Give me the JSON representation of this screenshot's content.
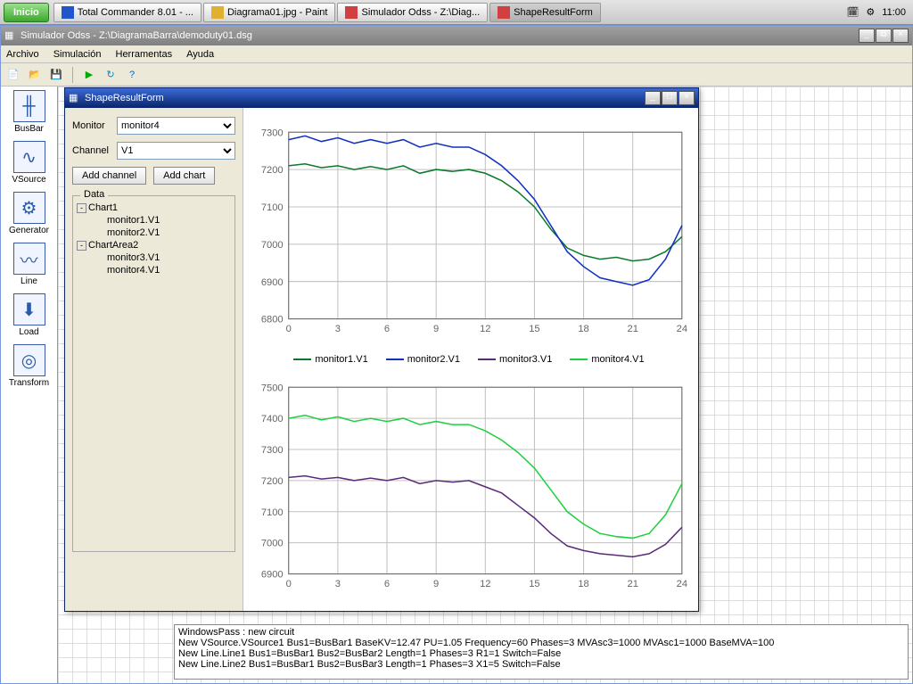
{
  "taskbar": {
    "start": "Inicio",
    "items": [
      {
        "label": "Total Commander 8.01 - ...",
        "icon_color": "#2255cc"
      },
      {
        "label": "Diagrama01.jpg - Paint",
        "icon_color": "#e0b030"
      },
      {
        "label": "Simulador Odss - Z:\\Diag...",
        "icon_color": "#d04040"
      },
      {
        "label": "ShapeResultForm",
        "icon_color": "#d04040",
        "active": true
      }
    ],
    "clock": "11:00"
  },
  "main_window": {
    "title": "Simulador Odss - Z:\\DiagramaBarra\\demoduty01.dsg",
    "menu": [
      "Archivo",
      "Simulación",
      "Herramentas",
      "Ayuda"
    ],
    "palette": [
      {
        "label": "BusBar"
      },
      {
        "label": "VSource"
      },
      {
        "label": "Generator"
      },
      {
        "label": "Line"
      },
      {
        "label": "Load"
      },
      {
        "label": "Transform"
      }
    ],
    "log": [
      "WindowsPass : new circuit",
      "New VSource.VSource1 Bus1=BusBar1 BaseKV=12.47 PU=1.05 Frequency=60 Phases=3 MVAsc3=1000 MVAsc1=1000 BaseMVA=100",
      "New Line.Line1 Bus1=BusBar1 Bus2=BusBar2 Length=1 Phases=3 R1=1 Switch=False",
      "New Line.Line2 Bus1=BusBar1 Bus2=BusBar3 Length=1 Phases=3 X1=5 Switch=False"
    ]
  },
  "dialog": {
    "title": "ShapeResultForm",
    "monitor_label": "Monitor",
    "monitor_value": "monitor4",
    "channel_label": "Channel",
    "channel_value": "V1",
    "add_channel": "Add channel",
    "add_chart": "Add chart",
    "data_group": "Data",
    "tree": [
      {
        "label": "Chart1",
        "children": [
          "monitor1.V1",
          "monitor2.V1"
        ]
      },
      {
        "label": "ChartArea2",
        "children": [
          "monitor3.V1",
          "monitor4.V1"
        ]
      }
    ]
  },
  "legend": [
    {
      "label": "monitor1.V1",
      "color": "#0a7a2a"
    },
    {
      "label": "monitor2.V1",
      "color": "#1030c0"
    },
    {
      "label": "monitor3.V1",
      "color": "#5a2a7a"
    },
    {
      "label": "monitor4.V1",
      "color": "#20d040"
    }
  ],
  "chart1": {
    "type": "line",
    "xlim": [
      0,
      24
    ],
    "ylim": [
      6800,
      7300
    ],
    "xticks": [
      0,
      3,
      6,
      9,
      12,
      15,
      18,
      21,
      24
    ],
    "yticks": [
      6800,
      6900,
      7000,
      7100,
      7200,
      7300
    ],
    "grid_color": "#c0c0c0",
    "axis_color": "#666",
    "series": [
      {
        "color": "#0a7a2a",
        "width": 1.5,
        "y": [
          7210,
          7215,
          7205,
          7210,
          7200,
          7208,
          7200,
          7210,
          7190,
          7200,
          7195,
          7200,
          7190,
          7170,
          7140,
          7100,
          7040,
          6990,
          6970,
          6960,
          6965,
          6955,
          6960,
          6980,
          7020
        ]
      },
      {
        "color": "#1030c0",
        "width": 1.5,
        "y": [
          7280,
          7290,
          7275,
          7285,
          7270,
          7280,
          7270,
          7280,
          7260,
          7270,
          7260,
          7260,
          7240,
          7210,
          7170,
          7120,
          7050,
          6980,
          6940,
          6910,
          6900,
          6890,
          6905,
          6960,
          7050
        ]
      }
    ]
  },
  "chart2": {
    "type": "line",
    "xlim": [
      0,
      24
    ],
    "ylim": [
      6900,
      7500
    ],
    "xticks": [
      0,
      3,
      6,
      9,
      12,
      15,
      18,
      21,
      24
    ],
    "yticks": [
      6900,
      7000,
      7100,
      7200,
      7300,
      7400,
      7500
    ],
    "grid_color": "#c0c0c0",
    "axis_color": "#666",
    "series": [
      {
        "color": "#5a2a7a",
        "width": 1.5,
        "y": [
          7210,
          7215,
          7205,
          7210,
          7200,
          7208,
          7200,
          7210,
          7190,
          7200,
          7195,
          7200,
          7180,
          7160,
          7120,
          7080,
          7030,
          6990,
          6975,
          6965,
          6960,
          6955,
          6965,
          6995,
          7050
        ]
      },
      {
        "color": "#20d040",
        "width": 1.5,
        "y": [
          7400,
          7410,
          7395,
          7405,
          7390,
          7400,
          7390,
          7400,
          7380,
          7390,
          7380,
          7380,
          7360,
          7330,
          7290,
          7240,
          7170,
          7100,
          7060,
          7030,
          7020,
          7015,
          7030,
          7090,
          7190
        ]
      }
    ]
  }
}
